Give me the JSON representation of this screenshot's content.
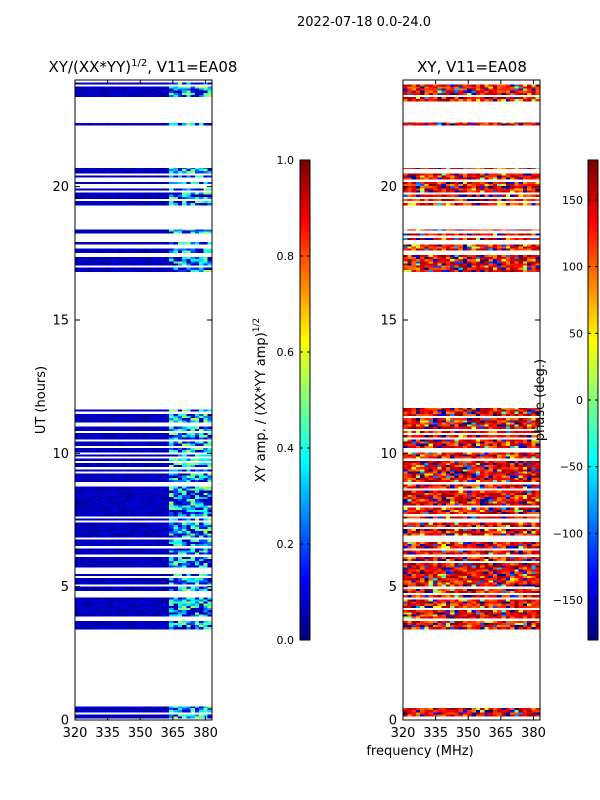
{
  "figure": {
    "suptitle": "2022-07-18 0.0-24.0",
    "xlabel": "frequency (MHz)"
  },
  "chart_data": [
    {
      "type": "heatmap",
      "title_main": "XY/(XX*YY)",
      "title_exp": "1/2",
      "title_rest": ", V11=EA08",
      "xlabel": "",
      "ylabel": "UT (hours)",
      "xlim": [
        320,
        383
      ],
      "ylim": [
        0,
        24
      ],
      "xticks": [
        320,
        335,
        350,
        365,
        380
      ],
      "yticks": [
        0,
        5,
        10,
        15,
        20
      ],
      "colorbar": {
        "label_main": "XY amp. / (XX*YY amp)",
        "label_exp": "1/2",
        "range": [
          0.0,
          1.0
        ],
        "ticks": [
          "0.0",
          "0.2",
          "0.4",
          "0.6",
          "0.8",
          "1.0"
        ],
        "tick_values": [
          0.0,
          0.2,
          0.4,
          0.6,
          0.8,
          1.0
        ],
        "colormap": "jet"
      },
      "data_hour_bands": [
        [
          0.05,
          0.5
        ],
        [
          3.4,
          11.7
        ],
        [
          16.8,
          18.4
        ],
        [
          19.3,
          20.7
        ],
        [
          22.3,
          22.4
        ],
        [
          23.2,
          23.9
        ]
      ],
      "base_value": 0.03,
      "hot_freq_range_mhz": [
        362,
        382
      ],
      "hot_value_range": [
        0.15,
        0.55
      ]
    },
    {
      "type": "heatmap",
      "title": "XY, V11=EA08",
      "xlabel": "",
      "ylabel": "",
      "xlim": [
        320,
        383
      ],
      "ylim": [
        0,
        24
      ],
      "xticks": [
        320,
        335,
        350,
        365,
        380
      ],
      "yticks": [
        0,
        5,
        10,
        15,
        20
      ],
      "colorbar": {
        "label": "phase (deg.)",
        "range": [
          -180,
          180
        ],
        "ticks": [
          "−150",
          "−100",
          "−50",
          "0",
          "50",
          "100",
          "150"
        ],
        "tick_values": [
          -150,
          -100,
          -50,
          0,
          50,
          100,
          150
        ],
        "colormap": "jet"
      },
      "data_hour_bands": [
        [
          0.05,
          0.5
        ],
        [
          3.4,
          11.7
        ],
        [
          16.8,
          18.4
        ],
        [
          19.3,
          20.7
        ],
        [
          22.3,
          22.4
        ],
        [
          23.2,
          23.9
        ]
      ],
      "phase_trend_deg": [
        120,
        160
      ]
    }
  ],
  "colors": {
    "axis": "#000000",
    "background": "#ffffff"
  }
}
